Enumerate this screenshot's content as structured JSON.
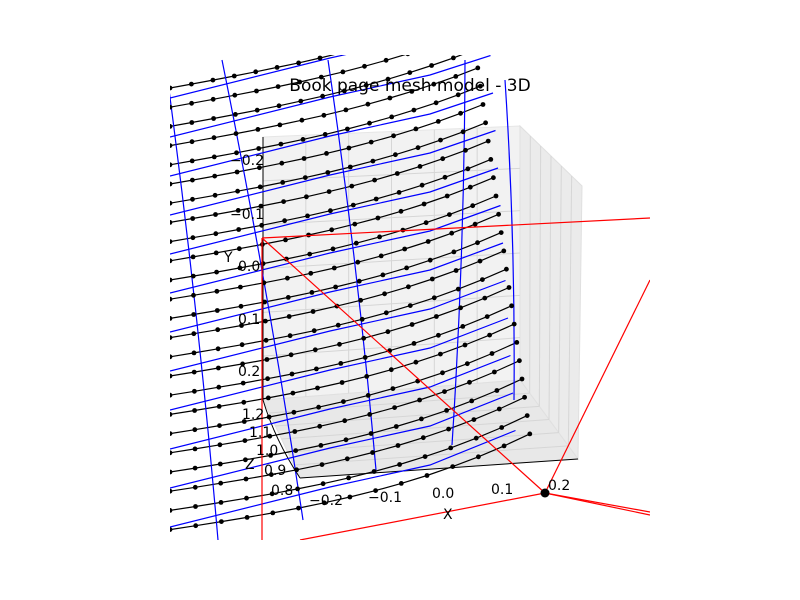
{
  "chart_data": {
    "type": "scatter",
    "title": "Book page mesh model - 3D",
    "xlabel": "X",
    "ylabel": "Y",
    "zlabel": "Z",
    "x_ticks": [
      "−0.2",
      "−0.1",
      "0.0",
      "0.1",
      "0.2"
    ],
    "y_ticks": [
      "−0.2",
      "−0.1",
      "0.0",
      "0.1",
      "0.2"
    ],
    "z_ticks": [
      "0.8",
      "0.9",
      "1.0",
      "1.1",
      "1.2"
    ],
    "grid": true,
    "colors": {
      "points": "#000000",
      "mesh_rows": "#000000",
      "mesh_columns": "#0000ff",
      "page_contours": "#0000ff",
      "camera_frustum": "#ff0000"
    },
    "series": [
      {
        "kind": "point-mesh"
      },
      {
        "kind": "page-model-contours"
      },
      {
        "kind": "camera-frustum"
      }
    ]
  }
}
